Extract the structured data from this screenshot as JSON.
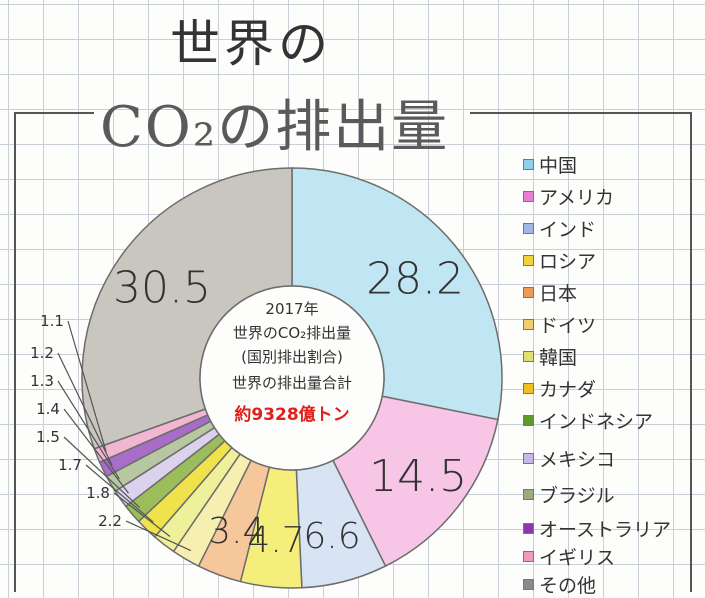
{
  "title_line1": "世界の",
  "title_line2": "CO₂の排出量",
  "center": {
    "line1": "2017年",
    "line2": "世界のCO₂排出量",
    "line3": "(国別排出割合)",
    "line4": "世界の排出量合計",
    "line5": "約9328億トン"
  },
  "chart_data": {
    "type": "pie",
    "categories": [
      "中国",
      "アメリカ",
      "インド",
      "ロシア",
      "日本",
      "ドイツ",
      "韓国",
      "カナダ",
      "インドネシア",
      "メキシコ",
      "ブラジル",
      "オーストラリア",
      "イギリス",
      "その他"
    ],
    "values": [
      28.2,
      14.5,
      6.6,
      4.7,
      3.4,
      2.2,
      1.8,
      1.7,
      1.5,
      1.4,
      1.3,
      1.2,
      1.1,
      30.5
    ],
    "labels": [
      "28.2",
      "14.5",
      "6.6",
      "4.7",
      "3.4",
      "2.2",
      "1.8",
      "1.7",
      "1.5",
      "1.4",
      "1.3",
      "1.2",
      "1.1",
      "30.5"
    ],
    "colors": [
      "#bfe6f2",
      "#f7c6e6",
      "#d8e4f4",
      "#f6ee7a",
      "#f7c79c",
      "#f7efb0",
      "#eef09a",
      "#f0e24a",
      "#9bbd5c",
      "#dcd2ee",
      "#b7c7a2",
      "#a86dc8",
      "#f3b6d2",
      "#c9c5bf"
    ]
  },
  "legend": [
    {
      "label": "中国",
      "color": "#8fd0e8"
    },
    {
      "label": "アメリカ",
      "color": "#e67fd0"
    },
    {
      "label": "インド",
      "color": "#9fb8e8"
    },
    {
      "label": "ロシア",
      "color": "#f0d23a"
    },
    {
      "label": "日本",
      "color": "#f09a5a"
    },
    {
      "label": "ドイツ",
      "color": "#f0cf6a"
    },
    {
      "label": "韓国",
      "color": "#e0e070"
    },
    {
      "label": "カナダ",
      "color": "#f0c020"
    },
    {
      "label": "インドネシア",
      "color": "#5f9a2a"
    },
    {
      "label": "メキシコ",
      "color": "#c8b8ea"
    },
    {
      "label": "ブラジル",
      "color": "#9caa80"
    },
    {
      "label": "オーストラリア",
      "color": "#8a3aa8"
    },
    {
      "label": "イギリス",
      "color": "#f09ac0"
    },
    {
      "label": "その他",
      "color": "#8a8a8a"
    }
  ]
}
